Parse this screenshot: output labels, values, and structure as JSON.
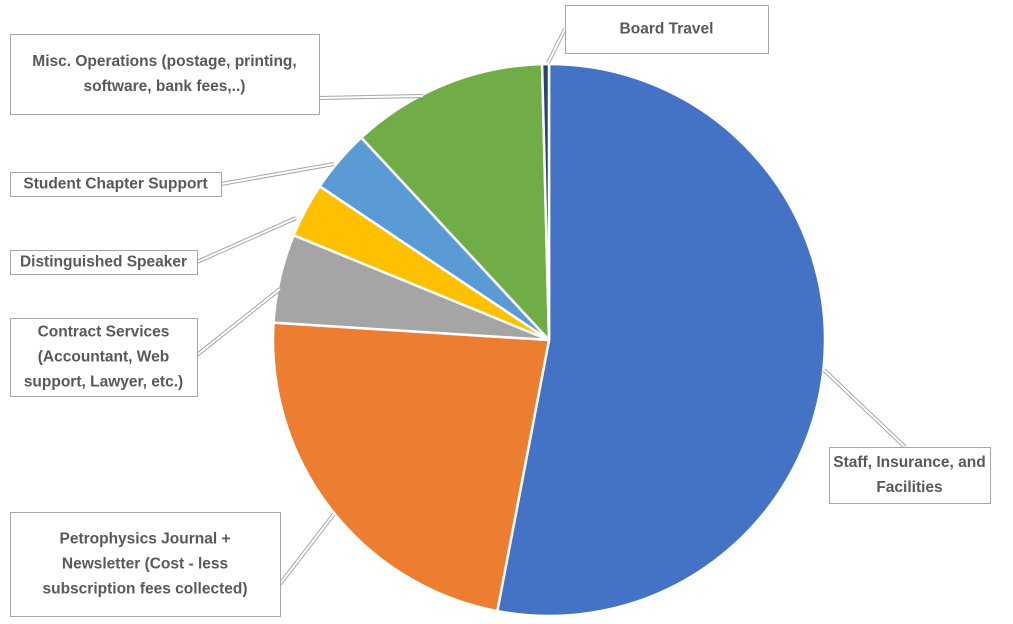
{
  "chart_data": {
    "type": "pie",
    "title": "",
    "colors": [
      "#4472C4",
      "#ED7D31",
      "#A5A5A5",
      "#FFC000",
      "#5B9BD5",
      "#70AD47",
      "#264478"
    ],
    "slices": [
      {
        "label": "Staff, Insurance, and Facilities",
        "value": 53.0,
        "lines": [
          "Staff, Insurance, and",
          "Facilities"
        ]
      },
      {
        "label": "Petrophysics Journal + Newsletter (Cost - less subscription fees collected)",
        "value": 23.0,
        "lines": [
          "Petrophysics Journal +",
          "Newsletter (Cost - less",
          "subscription fees collected)"
        ]
      },
      {
        "label": "Contract Services (Accountant, Web support, Lawyer, etc.)",
        "value": 5.2,
        "lines": [
          "Contract Services",
          "(Accountant, Web",
          "support, Lawyer, etc.)"
        ]
      },
      {
        "label": "Distinguished Speaker",
        "value": 3.2,
        "lines": [
          "Distinguished Speaker"
        ]
      },
      {
        "label": "Student Chapter Support",
        "value": 3.7,
        "lines": [
          "Student Chapter Support"
        ]
      },
      {
        "label": "Misc. Operations (postage, printing, software, bank fees,..)",
        "value": 11.5,
        "lines": [
          "Misc. Operations (postage, printing,",
          "software, bank fees,..)"
        ]
      },
      {
        "label": "Board Travel",
        "value": 0.4,
        "lines": [
          "Board Travel"
        ]
      }
    ]
  }
}
